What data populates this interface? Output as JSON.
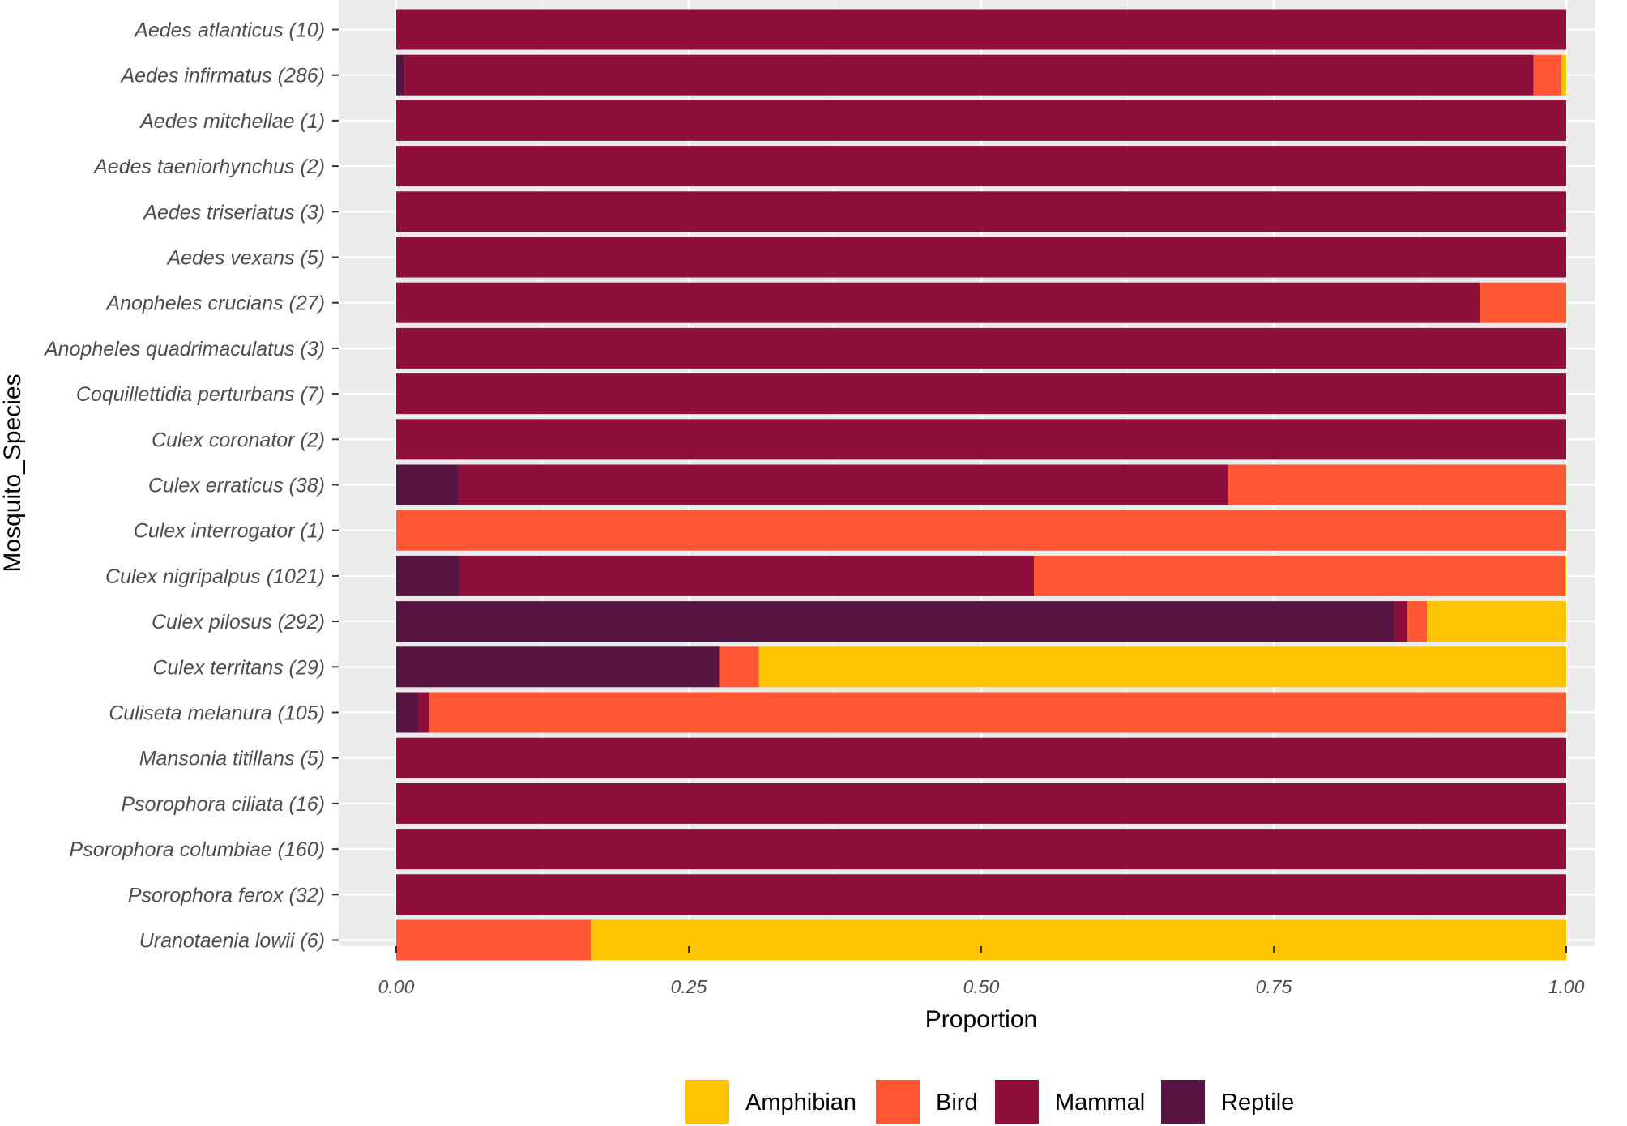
{
  "chart_data": {
    "type": "bar",
    "orientation": "horizontal",
    "stacked": true,
    "xlabel": "Proportion",
    "ylabel": "Mosquito_Species",
    "xlim": [
      0,
      1
    ],
    "x_ticks": [
      "0.00",
      "0.25",
      "0.50",
      "0.75",
      "1.00"
    ],
    "x_tick_values": [
      0,
      0.25,
      0.5,
      0.75,
      1
    ],
    "grid": true,
    "legend_position": "bottom",
    "categories": [
      "Aedes atlanticus (10)",
      "Aedes infirmatus (286)",
      "Aedes mitchellae (1)",
      "Aedes taeniorhynchus (2)",
      "Aedes triseriatus (3)",
      "Aedes vexans (5)",
      "Anopheles crucians (27)",
      "Anopheles quadrimaculatus (3)",
      "Coquillettidia perturbans (7)",
      "Culex coronator (2)",
      "Culex erraticus (38)",
      "Culex interrogator (1)",
      "Culex nigripalpus (1021)",
      "Culex pilosus (292)",
      "Culex territans (29)",
      "Culiseta melanura (105)",
      "Mansonia titillans (5)",
      "Psorophora ciliata (16)",
      "Psorophora columbiae (160)",
      "Psorophora ferox (32)",
      "Uranotaenia lowii (6)"
    ],
    "stack_order": [
      "Reptile",
      "Mammal",
      "Bird",
      "Amphibian"
    ],
    "series": [
      {
        "name": "Reptile",
        "color": "#561641",
        "values": [
          0,
          0.007,
          0,
          0,
          0,
          0,
          0,
          0,
          0,
          0,
          0.053,
          0,
          0.054,
          0.853,
          0.276,
          0.019,
          0,
          0,
          0,
          0,
          0
        ]
      },
      {
        "name": "Mammal",
        "color": "#8e0e3c",
        "values": [
          1,
          0.965,
          1,
          1,
          1,
          1,
          0.926,
          1,
          1,
          1,
          0.658,
          0,
          0.491,
          0.011,
          0,
          0.009,
          1,
          1,
          1,
          1,
          0
        ]
      },
      {
        "name": "Bird",
        "color": "#ff5733",
        "values": [
          0,
          0.024,
          0,
          0,
          0,
          0,
          0.074,
          0,
          0,
          0,
          0.289,
          1,
          0.454,
          0.017,
          0.034,
          0.972,
          0,
          0,
          0,
          0,
          0.167
        ]
      },
      {
        "name": "Amphibian",
        "color": "#ffc300",
        "values": [
          0,
          0.004,
          0,
          0,
          0,
          0,
          0,
          0,
          0,
          0,
          0,
          0,
          0.001,
          0.119,
          0.69,
          0,
          0,
          0,
          0,
          0,
          0.833
        ]
      }
    ],
    "legend": [
      "Amphibian",
      "Bird",
      "Mammal",
      "Reptile"
    ]
  },
  "colors": {
    "panel_background": "#ebebeb",
    "grid_major": "#ffffff",
    "grid_minor": "#f5f5f5",
    "tick_text": "#4d4d4d",
    "tick_mark": "#333333"
  }
}
